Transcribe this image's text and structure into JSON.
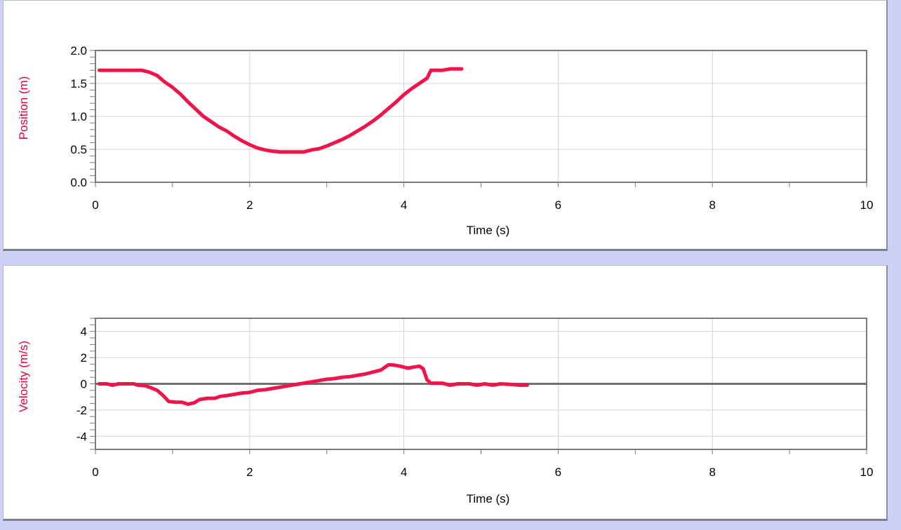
{
  "chart_data": [
    {
      "type": "line",
      "title": "",
      "xlabel": "Time (s)",
      "ylabel": "Position (m)",
      "xlim": [
        0,
        10
      ],
      "ylim": [
        0,
        2.0
      ],
      "x_ticks": [
        "0",
        "2",
        "4",
        "6",
        "8",
        "10"
      ],
      "y_ticks": [
        "0.0",
        "0.5",
        "1.0",
        "1.5",
        "2.0"
      ],
      "grid": true,
      "series": [
        {
          "color": "#f0144a",
          "points": [
            [
              0.05,
              1.7
            ],
            [
              0.6,
              1.7
            ],
            [
              0.7,
              1.67
            ],
            [
              0.8,
              1.62
            ],
            [
              0.9,
              1.52
            ],
            [
              1.0,
              1.44
            ],
            [
              1.1,
              1.34
            ],
            [
              1.2,
              1.22
            ],
            [
              1.3,
              1.11
            ],
            [
              1.4,
              1.0
            ],
            [
              1.5,
              0.92
            ],
            [
              1.6,
              0.84
            ],
            [
              1.7,
              0.78
            ],
            [
              1.8,
              0.7
            ],
            [
              1.9,
              0.63
            ],
            [
              2.0,
              0.57
            ],
            [
              2.1,
              0.52
            ],
            [
              2.2,
              0.49
            ],
            [
              2.3,
              0.47
            ],
            [
              2.4,
              0.46
            ],
            [
              2.6,
              0.46
            ],
            [
              2.7,
              0.46
            ],
            [
              2.8,
              0.49
            ],
            [
              2.9,
              0.51
            ],
            [
              3.0,
              0.55
            ],
            [
              3.1,
              0.6
            ],
            [
              3.2,
              0.65
            ],
            [
              3.3,
              0.71
            ],
            [
              3.4,
              0.78
            ],
            [
              3.5,
              0.85
            ],
            [
              3.6,
              0.93
            ],
            [
              3.7,
              1.02
            ],
            [
              3.8,
              1.12
            ],
            [
              3.9,
              1.22
            ],
            [
              4.0,
              1.33
            ],
            [
              4.1,
              1.42
            ],
            [
              4.2,
              1.5
            ],
            [
              4.3,
              1.58
            ],
            [
              4.35,
              1.7
            ],
            [
              4.5,
              1.7
            ],
            [
              4.6,
              1.72
            ],
            [
              4.75,
              1.72
            ]
          ]
        }
      ]
    },
    {
      "type": "line",
      "title": "",
      "xlabel": "Time (s)",
      "ylabel": "Velocity (m/s)",
      "xlim": [
        0,
        10
      ],
      "ylim": [
        -5,
        5
      ],
      "x_ticks": [
        "0",
        "2",
        "4",
        "6",
        "8",
        "10"
      ],
      "y_ticks": [
        "4",
        "2",
        "0",
        "-2",
        "-4"
      ],
      "grid": true,
      "series": [
        {
          "color": "#f0144a",
          "points": [
            [
              0.05,
              0.0
            ],
            [
              0.15,
              0.0
            ],
            [
              0.22,
              -0.1
            ],
            [
              0.3,
              0.0
            ],
            [
              0.5,
              0.0
            ],
            [
              0.55,
              -0.1
            ],
            [
              0.65,
              -0.15
            ],
            [
              0.72,
              -0.3
            ],
            [
              0.8,
              -0.5
            ],
            [
              0.88,
              -0.9
            ],
            [
              0.95,
              -1.35
            ],
            [
              1.05,
              -1.4
            ],
            [
              1.12,
              -1.4
            ],
            [
              1.2,
              -1.55
            ],
            [
              1.28,
              -1.45
            ],
            [
              1.35,
              -1.2
            ],
            [
              1.45,
              -1.1
            ],
            [
              1.55,
              -1.1
            ],
            [
              1.62,
              -0.95
            ],
            [
              1.7,
              -0.9
            ],
            [
              1.8,
              -0.8
            ],
            [
              1.9,
              -0.7
            ],
            [
              2.0,
              -0.65
            ],
            [
              2.1,
              -0.5
            ],
            [
              2.2,
              -0.45
            ],
            [
              2.3,
              -0.35
            ],
            [
              2.4,
              -0.25
            ],
            [
              2.5,
              -0.15
            ],
            [
              2.6,
              -0.05
            ],
            [
              2.7,
              0.05
            ],
            [
              2.8,
              0.15
            ],
            [
              2.9,
              0.25
            ],
            [
              3.0,
              0.35
            ],
            [
              3.1,
              0.4
            ],
            [
              3.2,
              0.5
            ],
            [
              3.3,
              0.55
            ],
            [
              3.4,
              0.65
            ],
            [
              3.5,
              0.75
            ],
            [
              3.6,
              0.9
            ],
            [
              3.7,
              1.05
            ],
            [
              3.8,
              1.45
            ],
            [
              3.85,
              1.45
            ],
            [
              3.95,
              1.35
            ],
            [
              4.05,
              1.2
            ],
            [
              4.15,
              1.3
            ],
            [
              4.2,
              1.35
            ],
            [
              4.25,
              1.15
            ],
            [
              4.3,
              0.3
            ],
            [
              4.35,
              0.05
            ],
            [
              4.5,
              0.05
            ],
            [
              4.6,
              -0.1
            ],
            [
              4.7,
              0.0
            ],
            [
              4.85,
              0.0
            ],
            [
              4.95,
              -0.1
            ],
            [
              5.05,
              0.0
            ],
            [
              5.15,
              -0.1
            ],
            [
              5.25,
              0.0
            ],
            [
              5.4,
              -0.05
            ],
            [
              5.5,
              -0.1
            ],
            [
              5.6,
              -0.1
            ]
          ]
        }
      ]
    }
  ]
}
